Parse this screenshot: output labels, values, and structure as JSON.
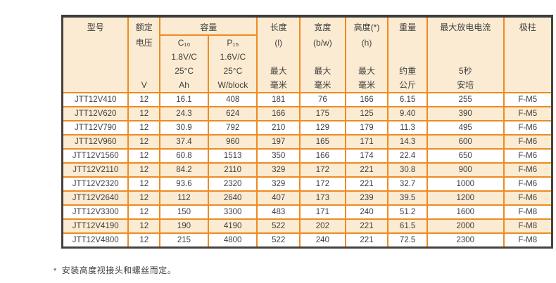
{
  "colors": {
    "grid_orange": "#ee8b21",
    "header_cream": "#fbebd2",
    "outer_border_dark": "#45423c",
    "text": "#3f3f3f",
    "row_white": "#ffffff"
  },
  "table": {
    "header": {
      "model": {
        "lines": [
          "型号",
          "",
          "",
          "",
          ""
        ]
      },
      "rated_voltage": {
        "lines": [
          "额定",
          "电压",
          "",
          "",
          "V"
        ]
      },
      "capacity": {
        "title": "容量",
        "c10": {
          "lines": [
            "C₁₀",
            "1.8V/C",
            "25°C",
            "Ah"
          ]
        },
        "p15": {
          "lines": [
            "P₁₅",
            "1.6V/C",
            "25°C",
            "W/block"
          ]
        }
      },
      "length": {
        "lines": [
          "长度",
          "(l)",
          "",
          "最大",
          "毫米"
        ]
      },
      "width": {
        "lines": [
          "宽度",
          "(b/w)",
          "",
          "最大",
          "毫米"
        ]
      },
      "height": {
        "lines": [
          "高度(*)",
          "(h)",
          "",
          "最大",
          "毫米"
        ]
      },
      "weight": {
        "lines": [
          "重量",
          "",
          "",
          "约重",
          "公斤"
        ]
      },
      "max_discharge_current": {
        "lines": [
          "最大放电电流",
          "",
          "",
          "5秒",
          "安培"
        ]
      },
      "terminal": {
        "lines": [
          "极柱",
          "",
          "",
          "",
          ""
        ]
      }
    },
    "column_keys": [
      "model",
      "voltage",
      "c10-ah",
      "p15-w",
      "length",
      "width",
      "height",
      "weight",
      "max-current",
      "terminal"
    ],
    "rows": [
      [
        "JTT12V410",
        "12",
        "16.1",
        "408",
        "181",
        "76",
        "166",
        "6.15",
        "255",
        "F-M5"
      ],
      [
        "JTT12V620",
        "12",
        "24.3",
        "624",
        "166",
        "175",
        "125",
        "9.40",
        "390",
        "F-M5"
      ],
      [
        "JTT12V790",
        "12",
        "30.9",
        "792",
        "210",
        "129",
        "179",
        "11.3",
        "495",
        "F-M6"
      ],
      [
        "JTT12V960",
        "12",
        "37.4",
        "960",
        "197",
        "165",
        "171",
        "14.3",
        "600",
        "F-M6"
      ],
      [
        "JTT12V1560",
        "12",
        "60.8",
        "1513",
        "350",
        "166",
        "174",
        "22.4",
        "650",
        "F-M6"
      ],
      [
        "JTT12V2110",
        "12",
        "84.2",
        "2110",
        "329",
        "172",
        "221",
        "30.8",
        "900",
        "F-M6"
      ],
      [
        "JTT12V2320",
        "12",
        "93.6",
        "2320",
        "329",
        "172",
        "221",
        "32.7",
        "1000",
        "F-M6"
      ],
      [
        "JTT12V2640",
        "12",
        "112",
        "2640",
        "407",
        "173",
        "239",
        "39.5",
        "1200",
        "F-M6"
      ],
      [
        "JTT12V3300",
        "12",
        "150",
        "3300",
        "483",
        "171",
        "240",
        "51.2",
        "1600",
        "F-M8"
      ],
      [
        "JTT12V4190",
        "12",
        "190",
        "4190",
        "522",
        "202",
        "221",
        "61.5",
        "2000",
        "F-M8"
      ],
      [
        "JTT12V4800",
        "12",
        "215",
        "4800",
        "522",
        "240",
        "221",
        "72.5",
        "2300",
        "F-M8"
      ]
    ]
  },
  "footnote": {
    "marker": "*",
    "text": "安装高度视接头和螺丝而定。"
  }
}
